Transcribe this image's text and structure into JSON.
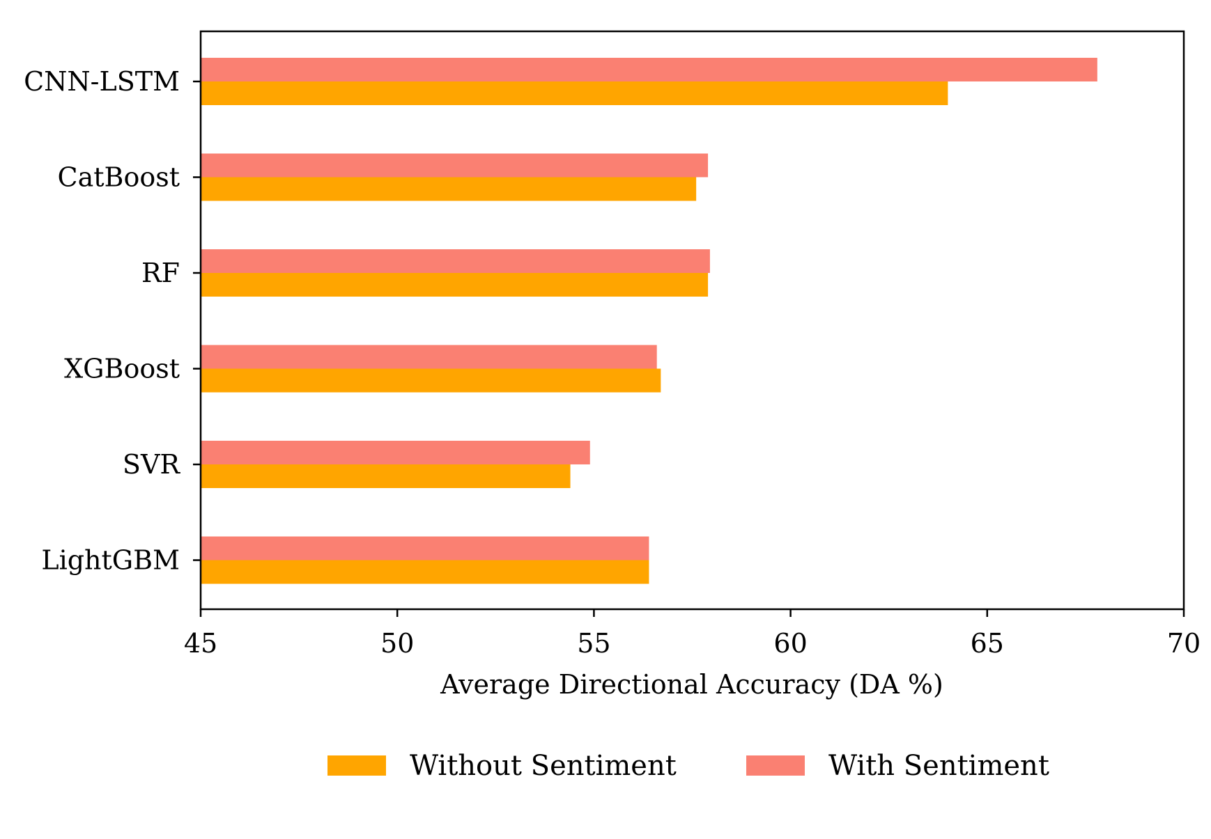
{
  "chart_data": {
    "type": "bar",
    "orientation": "horizontal",
    "categories": [
      "CNN-LSTM",
      "CatBoost",
      "RF",
      "XGBoost",
      "SVR",
      "LightGBM"
    ],
    "series": [
      {
        "name": "Without Sentiment",
        "color": "#FFA500",
        "values": [
          64.0,
          57.6,
          57.9,
          56.7,
          54.4,
          56.4
        ]
      },
      {
        "name": "With Sentiment",
        "color": "#FA8072",
        "values": [
          67.8,
          57.9,
          57.95,
          56.6,
          54.9,
          56.4
        ]
      }
    ],
    "xlabel": "Average Directional Accuracy (DA %)",
    "ylabel": "",
    "title": "",
    "xlim": [
      45,
      70
    ],
    "xticks": [
      "45",
      "50",
      "55",
      "60",
      "65",
      "70"
    ],
    "grid": false,
    "legend_position": "bottom-center"
  }
}
